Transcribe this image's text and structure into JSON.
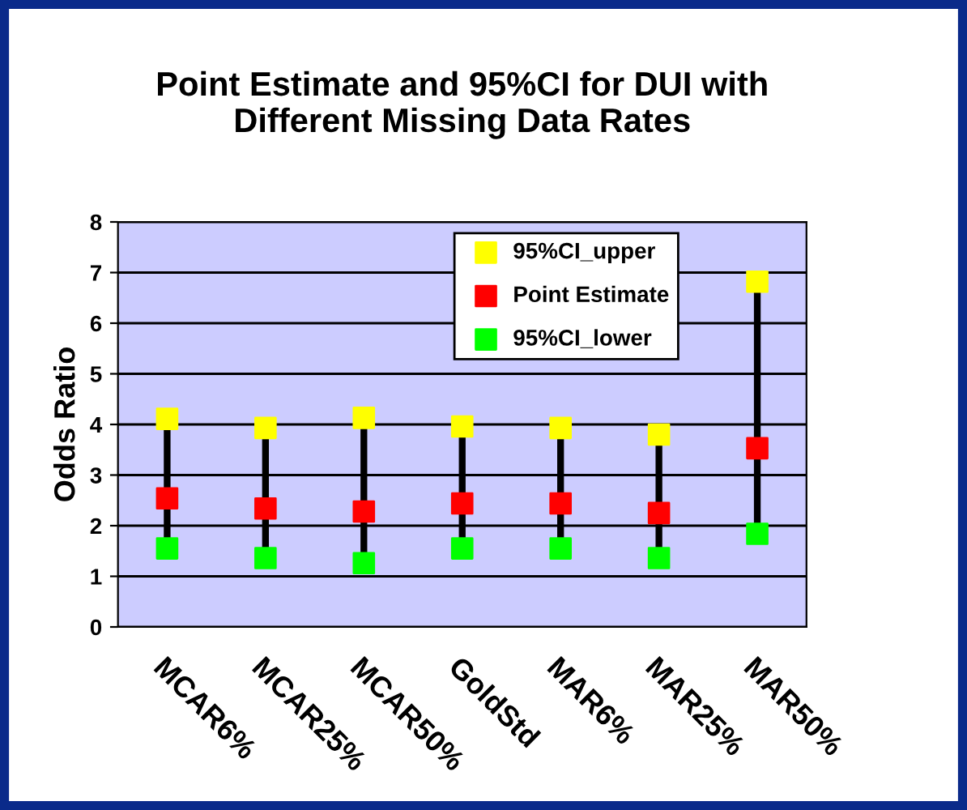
{
  "chart_data": {
    "type": "scatter",
    "title": "Point Estimate and 95%CI for DUI with\nDifferent Missing Data Rates",
    "ylabel": "Odds Ratio",
    "categories": [
      "MCAR6%",
      "MCAR25%",
      "MCAR50%",
      "GoldStd",
      "MAR6%",
      "MAR25%",
      "MAR50%"
    ],
    "series": [
      {
        "name": "95%CI_upper",
        "color": "#ffff00",
        "values": [
          4.11,
          3.93,
          4.13,
          3.96,
          3.93,
          3.8,
          6.82
        ]
      },
      {
        "name": "Point Estimate",
        "color": "#ff0000",
        "values": [
          2.54,
          2.34,
          2.28,
          2.44,
          2.44,
          2.25,
          3.53
        ]
      },
      {
        "name": "95%CI_lower",
        "color": "#00ff00",
        "values": [
          1.55,
          1.36,
          1.26,
          1.55,
          1.55,
          1.36,
          1.84
        ]
      }
    ],
    "ylim": [
      0,
      8
    ],
    "yticks": [
      0,
      1,
      2,
      3,
      4,
      5,
      6,
      7,
      8
    ],
    "grid": "y",
    "legend": "top right",
    "marker": "square"
  }
}
